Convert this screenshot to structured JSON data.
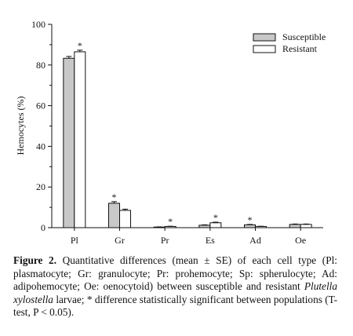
{
  "chart_data": {
    "type": "bar",
    "categories": [
      "Pl",
      "Gr",
      "Pr",
      "Es",
      "Ad",
      "Oe"
    ],
    "series": [
      {
        "name": "Susceptible",
        "values": [
          83.3,
          12.0,
          0.3,
          1.2,
          1.4,
          1.6
        ],
        "errors": [
          0.9,
          0.8,
          0.1,
          0.2,
          0.2,
          0.2
        ],
        "fill": "#c8c8c8"
      },
      {
        "name": "Resistant",
        "values": [
          86.5,
          8.5,
          0.6,
          2.4,
          0.6,
          1.6
        ],
        "errors": [
          0.8,
          0.6,
          0.1,
          0.3,
          0.1,
          0.2
        ],
        "fill": "#ffffff"
      }
    ],
    "significance": [
      {
        "category": "Pl",
        "series": "Resistant",
        "label": "*"
      },
      {
        "category": "Gr",
        "series": "Susceptible",
        "label": "*"
      },
      {
        "category": "Pr",
        "series": "Resistant",
        "label": "*"
      },
      {
        "category": "Es",
        "series": "Resistant",
        "label": "*"
      },
      {
        "category": "Ad",
        "series": "Susceptible",
        "label": "*"
      }
    ],
    "ylabel": "Hemocytes (%)",
    "xlabel": "",
    "ylim": [
      0,
      100
    ],
    "yticks": [
      0,
      20,
      40,
      60,
      80,
      100
    ],
    "grid": false,
    "legend_position": "top-right"
  },
  "caption": {
    "label": "Figure 2.",
    "text1": " Quantitative differences (mean ± SE) of each cell type (Pl: plasmatocyte; Gr: granulocyte; Pr: prohemocyte; Sp: spherulocyte; Ad: adipohemocyte; Oe: oenocytoid) between susceptible and resistant ",
    "species": "Plutella xylostella",
    "text2": " larvae; * difference statistically significant between populations (T-test, P < 0.05)."
  }
}
